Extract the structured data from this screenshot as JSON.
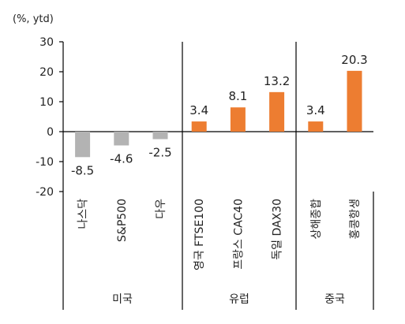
{
  "chart_data": {
    "type": "bar",
    "unit_label": "(%, ytd)",
    "ylim": [
      -20,
      30
    ],
    "yticks": [
      "30",
      "20",
      "10",
      "0",
      "-10",
      "-20"
    ],
    "ytick_values": [
      30,
      20,
      10,
      0,
      -10,
      -20
    ],
    "grid": false,
    "legend": "none",
    "categories": [
      "나스닥",
      "S&P500",
      "다우",
      "영국 FTSE100",
      "프랑스 CAC40",
      "독일 DAX30",
      "상해종합",
      "홍콩항생"
    ],
    "values": [
      -8.5,
      -4.6,
      -2.5,
      3.4,
      8.1,
      13.2,
      3.4,
      20.3
    ],
    "value_labels": [
      "-8.5",
      "-4.6",
      "-2.5",
      "3.4",
      "8.1",
      "13.2",
      "3.4",
      "20.3"
    ],
    "groups": [
      {
        "name": "미국",
        "members": [
          0,
          1,
          2
        ],
        "color": "#b3b3b3"
      },
      {
        "name": "유럽",
        "members": [
          3,
          4,
          5
        ],
        "color": "#ed7d31"
      },
      {
        "name": "중국",
        "members": [
          6,
          7
        ],
        "color": "#ed7d31"
      }
    ],
    "colors": {
      "us_bar": "#b3b3b3",
      "highlight_bar": "#ed7d31",
      "axis": "#000000",
      "text": "#222222"
    }
  }
}
